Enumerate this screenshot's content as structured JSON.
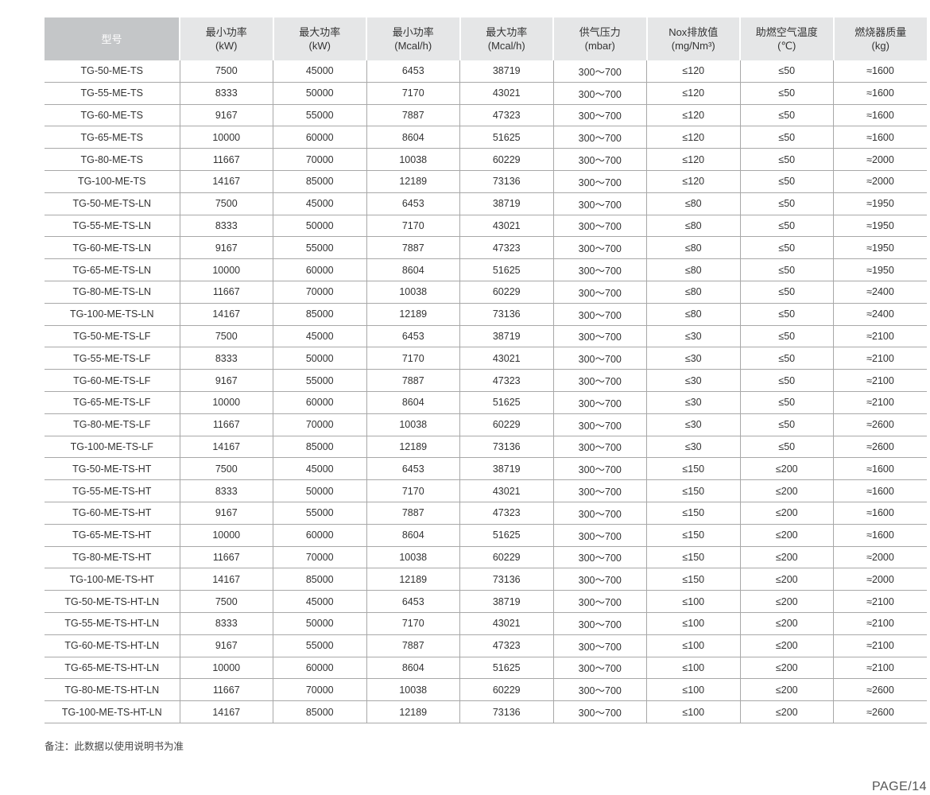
{
  "table": {
    "headers": [
      {
        "line1": "型号",
        "line2": ""
      },
      {
        "line1": "最小功率",
        "line2": "(kW)"
      },
      {
        "line1": "最大功率",
        "line2": "(kW)"
      },
      {
        "line1": "最小功率",
        "line2": "(Mcal/h)"
      },
      {
        "line1": "最大功率",
        "line2": "(Mcal/h)"
      },
      {
        "line1": "供气压力",
        "line2": "(mbar)"
      },
      {
        "line1": "Nox排放值",
        "line2": "(mg/Nm³)"
      },
      {
        "line1": "助燃空气温度",
        "line2": "(℃)"
      },
      {
        "line1": "燃烧器质量",
        "line2": "(kg)"
      }
    ],
    "rows": [
      [
        "TG-50-ME-TS",
        "7500",
        "45000",
        "6453",
        "38719",
        "300～700",
        "≤120",
        "≤50",
        "≈1600"
      ],
      [
        "TG-55-ME-TS",
        "8333",
        "50000",
        "7170",
        "43021",
        "300～700",
        "≤120",
        "≤50",
        "≈1600"
      ],
      [
        "TG-60-ME-TS",
        "9167",
        "55000",
        "7887",
        "47323",
        "300～700",
        "≤120",
        "≤50",
        "≈1600"
      ],
      [
        "TG-65-ME-TS",
        "10000",
        "60000",
        "8604",
        "51625",
        "300～700",
        "≤120",
        "≤50",
        "≈1600"
      ],
      [
        "TG-80-ME-TS",
        "11667",
        "70000",
        "10038",
        "60229",
        "300～700",
        "≤120",
        "≤50",
        "≈2000"
      ],
      [
        "TG-100-ME-TS",
        "14167",
        "85000",
        "12189",
        "73136",
        "300～700",
        "≤120",
        "≤50",
        "≈2000"
      ],
      [
        "TG-50-ME-TS-LN",
        "7500",
        "45000",
        "6453",
        "38719",
        "300～700",
        "≤80",
        "≤50",
        "≈1950"
      ],
      [
        "TG-55-ME-TS-LN",
        "8333",
        "50000",
        "7170",
        "43021",
        "300～700",
        "≤80",
        "≤50",
        "≈1950"
      ],
      [
        "TG-60-ME-TS-LN",
        "9167",
        "55000",
        "7887",
        "47323",
        "300～700",
        "≤80",
        "≤50",
        "≈1950"
      ],
      [
        "TG-65-ME-TS-LN",
        "10000",
        "60000",
        "8604",
        "51625",
        "300～700",
        "≤80",
        "≤50",
        "≈1950"
      ],
      [
        "TG-80-ME-TS-LN",
        "11667",
        "70000",
        "10038",
        "60229",
        "300～700",
        "≤80",
        "≤50",
        "≈2400"
      ],
      [
        "TG-100-ME-TS-LN",
        "14167",
        "85000",
        "12189",
        "73136",
        "300～700",
        "≤80",
        "≤50",
        "≈2400"
      ],
      [
        "TG-50-ME-TS-LF",
        "7500",
        "45000",
        "6453",
        "38719",
        "300～700",
        "≤30",
        "≤50",
        "≈2100"
      ],
      [
        "TG-55-ME-TS-LF",
        "8333",
        "50000",
        "7170",
        "43021",
        "300～700",
        "≤30",
        "≤50",
        "≈2100"
      ],
      [
        "TG-60-ME-TS-LF",
        "9167",
        "55000",
        "7887",
        "47323",
        "300～700",
        "≤30",
        "≤50",
        "≈2100"
      ],
      [
        "TG-65-ME-TS-LF",
        "10000",
        "60000",
        "8604",
        "51625",
        "300～700",
        "≤30",
        "≤50",
        "≈2100"
      ],
      [
        "TG-80-ME-TS-LF",
        "11667",
        "70000",
        "10038",
        "60229",
        "300～700",
        "≤30",
        "≤50",
        "≈2600"
      ],
      [
        "TG-100-ME-TS-LF",
        "14167",
        "85000",
        "12189",
        "73136",
        "300～700",
        "≤30",
        "≤50",
        "≈2600"
      ],
      [
        "TG-50-ME-TS-HT",
        "7500",
        "45000",
        "6453",
        "38719",
        "300～700",
        "≤150",
        "≤200",
        "≈1600"
      ],
      [
        "TG-55-ME-TS-HT",
        "8333",
        "50000",
        "7170",
        "43021",
        "300～700",
        "≤150",
        "≤200",
        "≈1600"
      ],
      [
        "TG-60-ME-TS-HT",
        "9167",
        "55000",
        "7887",
        "47323",
        "300～700",
        "≤150",
        "≤200",
        "≈1600"
      ],
      [
        "TG-65-ME-TS-HT",
        "10000",
        "60000",
        "8604",
        "51625",
        "300～700",
        "≤150",
        "≤200",
        "≈1600"
      ],
      [
        "TG-80-ME-TS-HT",
        "11667",
        "70000",
        "10038",
        "60229",
        "300～700",
        "≤150",
        "≤200",
        "≈2000"
      ],
      [
        "TG-100-ME-TS-HT",
        "14167",
        "85000",
        "12189",
        "73136",
        "300～700",
        "≤150",
        "≤200",
        "≈2000"
      ],
      [
        "TG-50-ME-TS-HT-LN",
        "7500",
        "45000",
        "6453",
        "38719",
        "300～700",
        "≤100",
        "≤200",
        "≈2100"
      ],
      [
        "TG-55-ME-TS-HT-LN",
        "8333",
        "50000",
        "7170",
        "43021",
        "300～700",
        "≤100",
        "≤200",
        "≈2100"
      ],
      [
        "TG-60-ME-TS-HT-LN",
        "9167",
        "55000",
        "7887",
        "47323",
        "300～700",
        "≤100",
        "≤200",
        "≈2100"
      ],
      [
        "TG-65-ME-TS-HT-LN",
        "10000",
        "60000",
        "8604",
        "51625",
        "300～700",
        "≤100",
        "≤200",
        "≈2100"
      ],
      [
        "TG-80-ME-TS-HT-LN",
        "11667",
        "70000",
        "10038",
        "60229",
        "300～700",
        "≤100",
        "≤200",
        "≈2600"
      ],
      [
        "TG-100-ME-TS-HT-LN",
        "14167",
        "85000",
        "12189",
        "73136",
        "300～700",
        "≤100",
        "≤200",
        "≈2600"
      ]
    ]
  },
  "note": "备注：此数据以使用说明书为准",
  "page_label": "PAGE/14"
}
